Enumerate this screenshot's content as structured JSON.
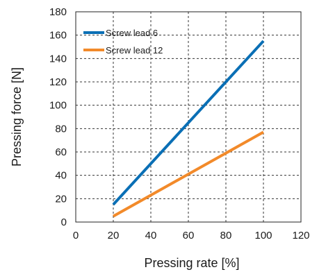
{
  "chart_data": {
    "type": "line",
    "title": "",
    "xlabel": "Pressing rate [%]",
    "ylabel": "Pressing force [N]",
    "xlim": [
      0,
      120
    ],
    "ylim": [
      0,
      180
    ],
    "xticks": [
      0,
      20,
      40,
      60,
      80,
      100,
      120
    ],
    "yticks": [
      0,
      20,
      40,
      60,
      80,
      100,
      120,
      140,
      160,
      180
    ],
    "grid": true,
    "legend_position": "top-left",
    "series": [
      {
        "name": "Screw lead 6",
        "color": "#0a6fb5",
        "x": [
          20,
          100
        ],
        "y": [
          15,
          155
        ]
      },
      {
        "name": "Screw lead 12",
        "color": "#f28a2a",
        "x": [
          20,
          100
        ],
        "y": [
          5,
          77
        ]
      }
    ]
  }
}
